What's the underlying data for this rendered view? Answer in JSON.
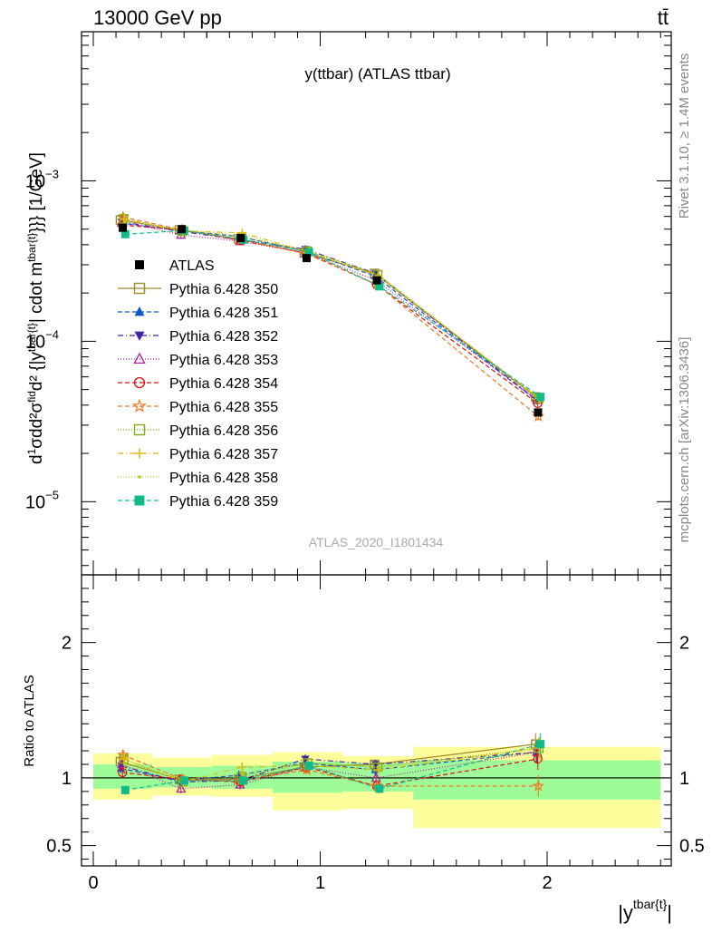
{
  "header": {
    "left": "13000 GeV pp",
    "right": "tt̄"
  },
  "side": {
    "rivet": "Rivet 3.1.10, ≥ 1.4M events",
    "mcplots": "mcplots.cern.ch [arXiv:1306.3436]"
  },
  "colors": {
    "band_inner": "#9efc98",
    "band_outer": "#fdfd9b",
    "data": "#000000"
  },
  "chart_data": [
    {
      "type": "line",
      "title": "y(ttbar) (ATLAS ttbar)",
      "watermark": "ATLAS_2020_I1801434",
      "ylabel": "d¹/σ d²σ^fid / d²{|y^tbar{t}| cdot m^tbar{t}}}} [1/GeV]",
      "ylabel_parts": [
        "d",
        "1",
        "σ",
        "d",
        "d²σ",
        "fid",
        "d² {|y",
        "tbar{t}",
        "| cdot m",
        "tbar{t}",
        "}}} [1/GeV]"
      ],
      "yscale": "log",
      "ylim": [
        3.5e-06,
        0.0085
      ],
      "yticks": [
        {
          "value": 1e-05,
          "base": "10",
          "exp": "−5"
        },
        {
          "value": 0.0001,
          "base": "10",
          "exp": "−4"
        },
        {
          "value": 0.001,
          "base": "10",
          "exp": "−3"
        }
      ],
      "xlim": [
        -0.05,
        2.55
      ],
      "x": [
        0.13,
        0.39,
        0.65,
        0.94,
        1.25,
        1.96
      ],
      "data": {
        "name": "ATLAS",
        "values": [
          0.00051,
          0.0005,
          0.00044,
          0.00033,
          0.00024,
          3.6e-05
        ]
      },
      "series": [
        {
          "name": "Pythia 6.428 350",
          "color": "#a08a2a",
          "dash": "",
          "marker": "square-open",
          "values": [
            0.00057,
            0.000495,
            0.000435,
            0.000355,
            0.000265,
            4.5e-05
          ]
        },
        {
          "name": "Pythia 6.428 351",
          "color": "#1155cc",
          "dash": "5,3",
          "marker": "triangle-up",
          "values": [
            0.000545,
            0.00049,
            0.00045,
            0.000365,
            0.000255,
            4.3e-05
          ]
        },
        {
          "name": "Pythia 6.428 352",
          "color": "#4422aa",
          "dash": "6,3,1,3",
          "marker": "triangle-down",
          "values": [
            0.000555,
            0.000485,
            0.00043,
            0.000375,
            0.000265,
            4.3e-05
          ]
        },
        {
          "name": "Pythia 6.428 353",
          "color": "#aa2299",
          "dash": "1,2",
          "marker": "triangle-open",
          "values": [
            0.00056,
            0.00046,
            0.00042,
            0.000355,
            0.00024,
            4.3e-05
          ]
        },
        {
          "name": "Pythia 6.428 354",
          "color": "#dd1111",
          "dash": "5,3",
          "marker": "circle-open",
          "values": [
            0.00053,
            0.000495,
            0.000425,
            0.000355,
            0.000225,
            4.1e-05
          ]
        },
        {
          "name": "Pythia 6.428 355",
          "color": "#ee7722",
          "dash": "5,3",
          "marker": "star-open",
          "values": [
            0.000595,
            0.000495,
            0.00043,
            0.00035,
            0.000225,
            3.4e-05
          ]
        },
        {
          "name": "Pythia 6.428 356",
          "color": "#88aa11",
          "dash": "1,2",
          "marker": "square-open",
          "values": [
            0.00058,
            0.000485,
            0.000445,
            0.000365,
            0.00026,
            4.4e-05
          ]
        },
        {
          "name": "Pythia 6.428 357",
          "color": "#ddbb11",
          "dash": "6,3,1,3",
          "marker": "cross",
          "values": [
            0.00058,
            0.000485,
            0.000475,
            0.00036,
            0.000255,
            4.4e-05
          ]
        },
        {
          "name": "Pythia 6.428 358",
          "color": "#bbcc22",
          "dash": "1,2",
          "marker": "dot",
          "values": [
            0.00056,
            0.000495,
            0.000455,
            0.000365,
            0.00026,
            4.3e-05
          ]
        },
        {
          "name": "Pythia 6.428 359",
          "color": "#11bb88",
          "dash": "5,3",
          "marker": "square",
          "values": [
            0.000465,
            0.00049,
            0.00043,
            0.00036,
            0.00022,
            4.5e-05
          ]
        }
      ]
    },
    {
      "type": "line",
      "ylabel": "Ratio to ATLAS",
      "xlabel": "|y^tbar{t}|",
      "xlabel_parts": [
        "|y",
        "tbar{t}",
        "|"
      ],
      "ylim": [
        0.35,
        2.5
      ],
      "yticks": [
        {
          "value": 0.5,
          "label": "0.5"
        },
        {
          "value": 1,
          "label": "1"
        },
        {
          "value": 2,
          "label": "2"
        }
      ],
      "xticks": [
        {
          "value": 0,
          "label": "0"
        },
        {
          "value": 1,
          "label": "1"
        },
        {
          "value": 2,
          "label": "2"
        }
      ],
      "bins": [
        {
          "lo": 0.0,
          "hi": 0.26,
          "inner": [
            0.92,
            1.1
          ],
          "outer": [
            0.84,
            1.18
          ]
        },
        {
          "lo": 0.26,
          "hi": 0.52,
          "inner": [
            0.93,
            1.08
          ],
          "outer": [
            0.87,
            1.15
          ]
        },
        {
          "lo": 0.52,
          "hi": 0.79,
          "inner": [
            0.92,
            1.09
          ],
          "outer": [
            0.86,
            1.17
          ]
        },
        {
          "lo": 0.79,
          "hi": 1.1,
          "inner": [
            0.89,
            1.12
          ],
          "outer": [
            0.76,
            1.19
          ]
        },
        {
          "lo": 1.1,
          "hi": 1.41,
          "inner": [
            0.9,
            1.11
          ],
          "outer": [
            0.77,
            1.16
          ]
        },
        {
          "lo": 1.41,
          "hi": 2.5,
          "inner": [
            0.84,
            1.13
          ],
          "outer": [
            0.63,
            1.23
          ]
        }
      ],
      "series_ratios": [
        [
          1.12,
          0.99,
          0.99,
          1.08,
          1.1,
          1.25
        ],
        [
          1.07,
          0.98,
          1.02,
          1.11,
          1.06,
          1.19
        ],
        [
          1.09,
          0.97,
          0.98,
          1.14,
          1.1,
          1.19
        ],
        [
          1.1,
          0.92,
          0.95,
          1.08,
          1.0,
          1.19
        ],
        [
          1.04,
          0.99,
          0.97,
          1.08,
          0.94,
          1.14
        ],
        [
          1.17,
          0.99,
          0.98,
          1.06,
          0.94,
          0.94
        ],
        [
          1.14,
          0.97,
          1.01,
          1.11,
          1.08,
          1.22
        ],
        [
          1.14,
          0.97,
          1.08,
          1.09,
          1.06,
          1.22
        ],
        [
          1.1,
          0.99,
          1.03,
          1.11,
          1.08,
          1.19
        ],
        [
          0.91,
          0.98,
          0.98,
          1.09,
          0.92,
          1.25
        ]
      ]
    }
  ]
}
